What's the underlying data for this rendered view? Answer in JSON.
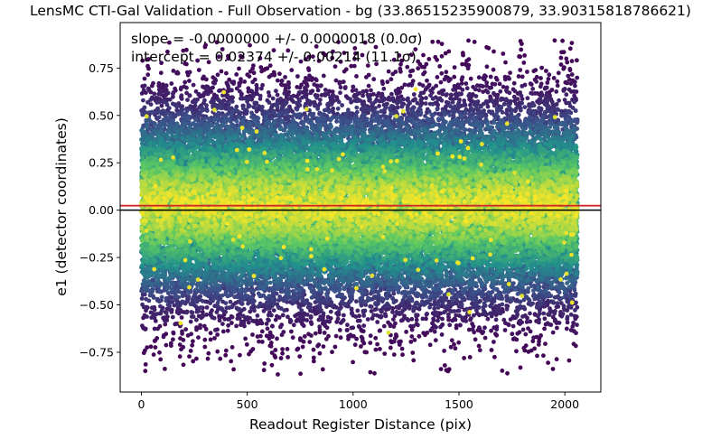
{
  "chart_data": {
    "type": "scatter",
    "title": "LensMC CTI-Gal Validation - Full Observation - bg (33.86515235900879, 33.90315818786621)",
    "xlabel": "Readout Register Distance (pix)",
    "ylabel": "e1 (detector coordinates)",
    "xlim": [
      -100,
      2170
    ],
    "ylim": [
      -0.96,
      0.99
    ],
    "xticks": [
      0,
      500,
      1000,
      1500,
      2000
    ],
    "yticks": [
      -0.75,
      -0.5,
      -0.25,
      0.0,
      0.25,
      0.5,
      0.75
    ],
    "xtick_labels": [
      "0",
      "500",
      "1000",
      "1500",
      "2000"
    ],
    "ytick_labels": [
      "−0.75",
      "−0.50",
      "−0.25",
      "0.00",
      "0.25",
      "0.50",
      "0.75"
    ],
    "colormap": "viridis",
    "color_encoding": "point density",
    "point_count_approx": 30000,
    "x_range_of_points": [
      0,
      2060
    ],
    "y_spread_std": 0.28,
    "grid": false,
    "annotations": [
      "slope = -0.0000000 +/- 0.0000018 (0.0σ)",
      "intercept = 0.02374 +/- 0.00214 (11.1σ)"
    ],
    "lines": [
      {
        "kind": "horizontal",
        "y": 0.0,
        "color": "#000000"
      },
      {
        "kind": "fit",
        "slope": -0.0,
        "intercept": 0.02374,
        "color": "#d62728"
      }
    ],
    "fit": {
      "slope": -0.0,
      "slope_err": 1.8e-06,
      "intercept": 0.02374,
      "intercept_err": 0.00214
    }
  }
}
